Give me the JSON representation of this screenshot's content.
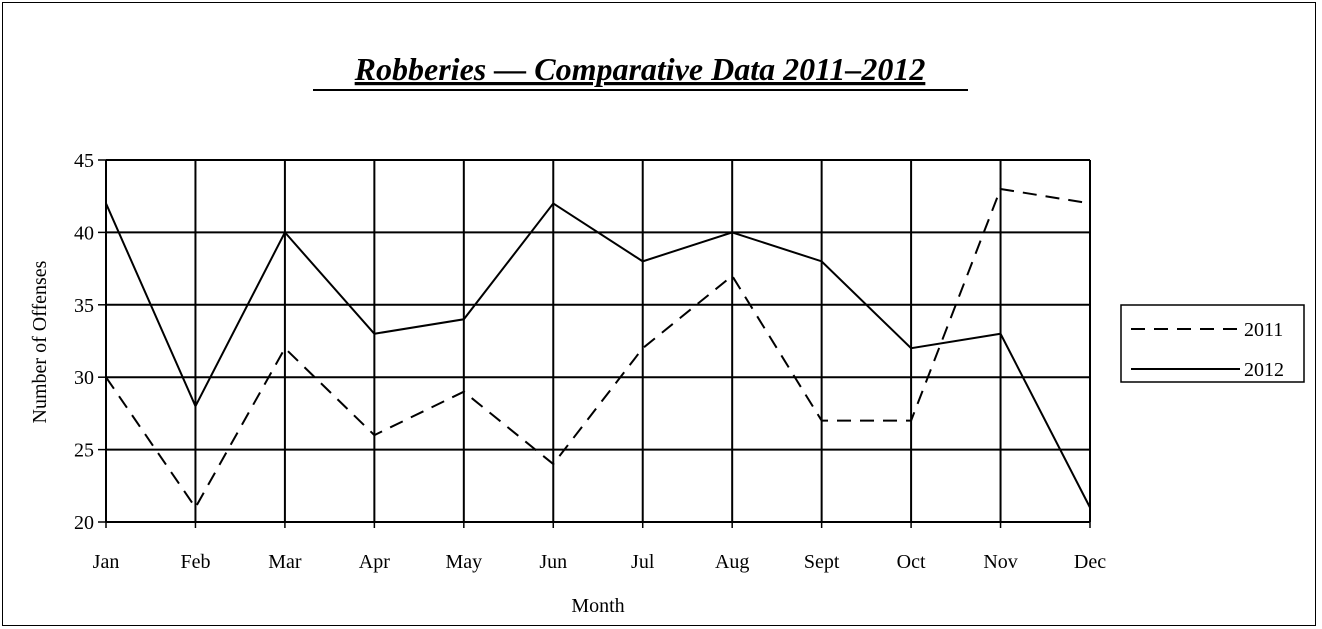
{
  "chart_data": {
    "type": "line",
    "title": "Robberies — Comparative Data 2011–2012",
    "xlabel": "Month",
    "ylabel": "Number of Offenses",
    "categories": [
      "Jan",
      "Feb",
      "Mar",
      "Apr",
      "May",
      "Jun",
      "Jul",
      "Aug",
      "Sept",
      "Oct",
      "Nov",
      "Dec"
    ],
    "ylim": [
      20,
      45
    ],
    "yticks": [
      "20",
      "25",
      "30",
      "35",
      "40",
      "45"
    ],
    "grid": true,
    "legend_position": "right",
    "series": [
      {
        "name": "2011",
        "style": "dashed",
        "color": "#000000",
        "values": [
          30,
          21,
          32,
          26,
          29,
          24,
          32,
          37,
          27,
          27,
          43,
          42
        ]
      },
      {
        "name": "2012",
        "style": "solid",
        "color": "#000000",
        "values": [
          42,
          28,
          40,
          33,
          34,
          42,
          38,
          40,
          38,
          32,
          33,
          21
        ]
      }
    ]
  }
}
